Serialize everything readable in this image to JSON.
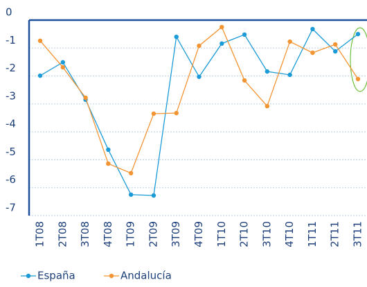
{
  "chart_data": {
    "type": "line",
    "categories": [
      "1T08",
      "2T08",
      "3T08",
      "4T08",
      "1T09",
      "2T09",
      "3T09",
      "4T09",
      "1T10",
      "2T10",
      "3T10",
      "4T10",
      "1T11",
      "2T11",
      "3T11"
    ],
    "series": [
      {
        "name": "España",
        "color": "#1a9ad6",
        "values": [
          -1.99,
          -1.51,
          -2.85,
          -4.64,
          -6.25,
          -6.28,
          -0.6,
          -2.03,
          -0.84,
          -0.52,
          -1.84,
          -1.96,
          -0.32,
          -1.12,
          -0.5
        ]
      },
      {
        "name": "Andalucía",
        "color": "#f39433",
        "values": [
          -0.74,
          -1.69,
          -2.78,
          -5.14,
          -5.48,
          -3.35,
          -3.33,
          -0.92,
          -0.25,
          -2.16,
          -3.08,
          -0.77,
          -1.17,
          -0.87,
          -2.11
        ]
      }
    ],
    "ylim": [
      -7,
      0
    ],
    "yticks": [
      0,
      -1,
      -2,
      -3,
      -4,
      -5,
      -6,
      -7
    ],
    "grid": true
  }
}
